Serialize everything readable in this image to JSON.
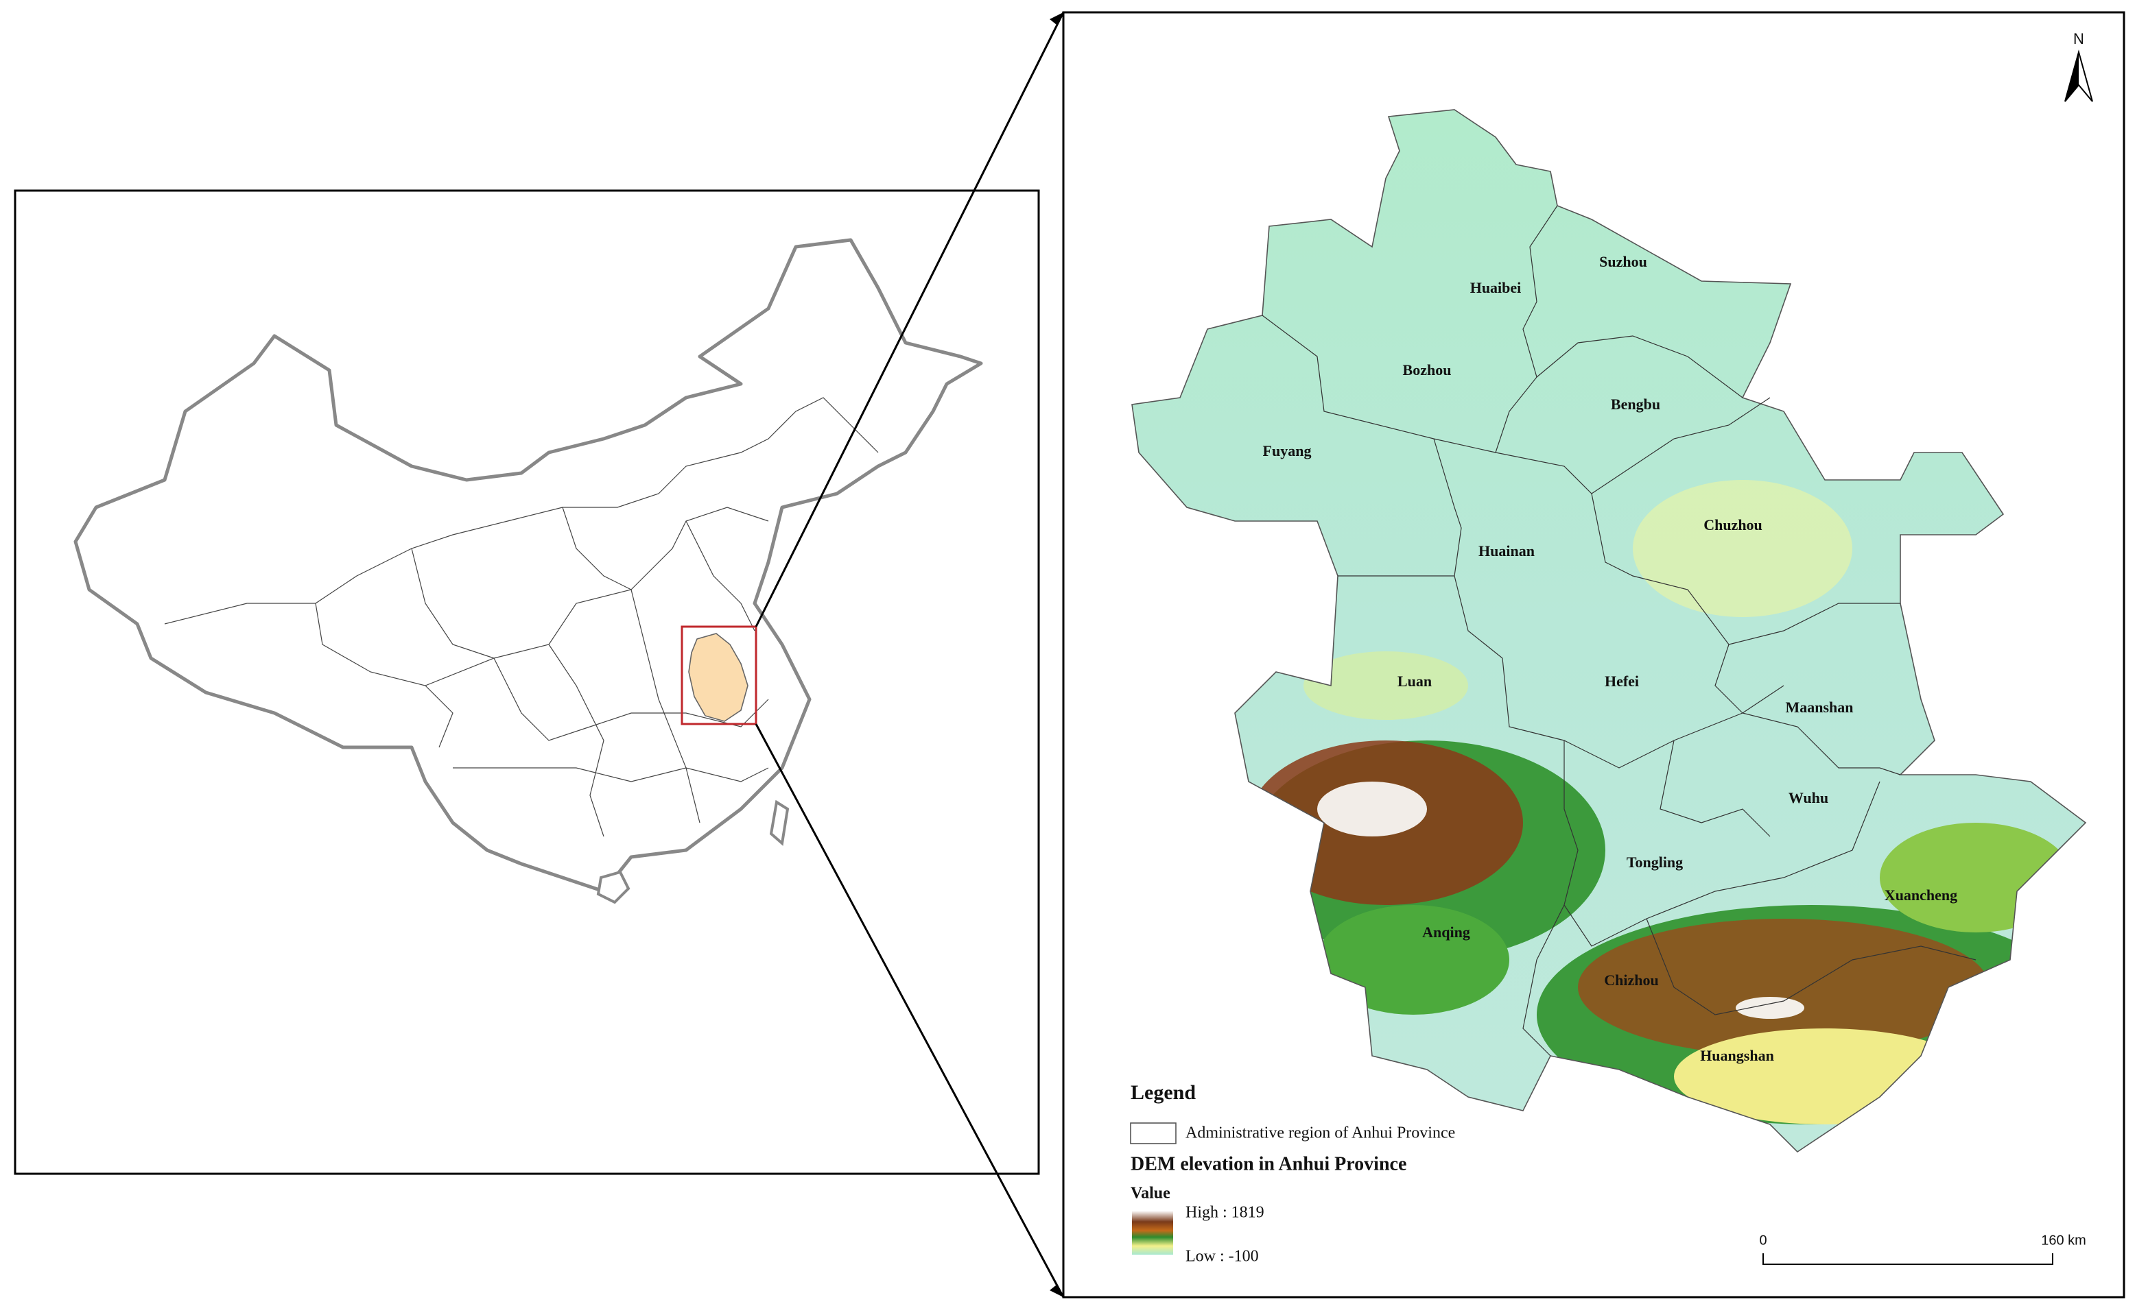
{
  "inset_map": {
    "north": "N",
    "cities": [
      "Suzhou",
      "Huaibei",
      "Bozhou",
      "Bengbu",
      "Fuyang",
      "Chuzhou",
      "Huainan",
      "Luan",
      "Hefei",
      "Maanshan",
      "Wuhu",
      "Tongling",
      "Xuancheng",
      "Anqing",
      "Chizhou",
      "Huangshan"
    ],
    "legend": {
      "title": "Legend",
      "boundary_label": "Administrative region of Anhui Province",
      "dem_title": "DEM elevation in Anhui Province",
      "value_label": "Value",
      "high_label": "High : 1819",
      "low_label": "Low : -100"
    },
    "scale_bar": {
      "start": "0",
      "end": "160 km"
    }
  }
}
